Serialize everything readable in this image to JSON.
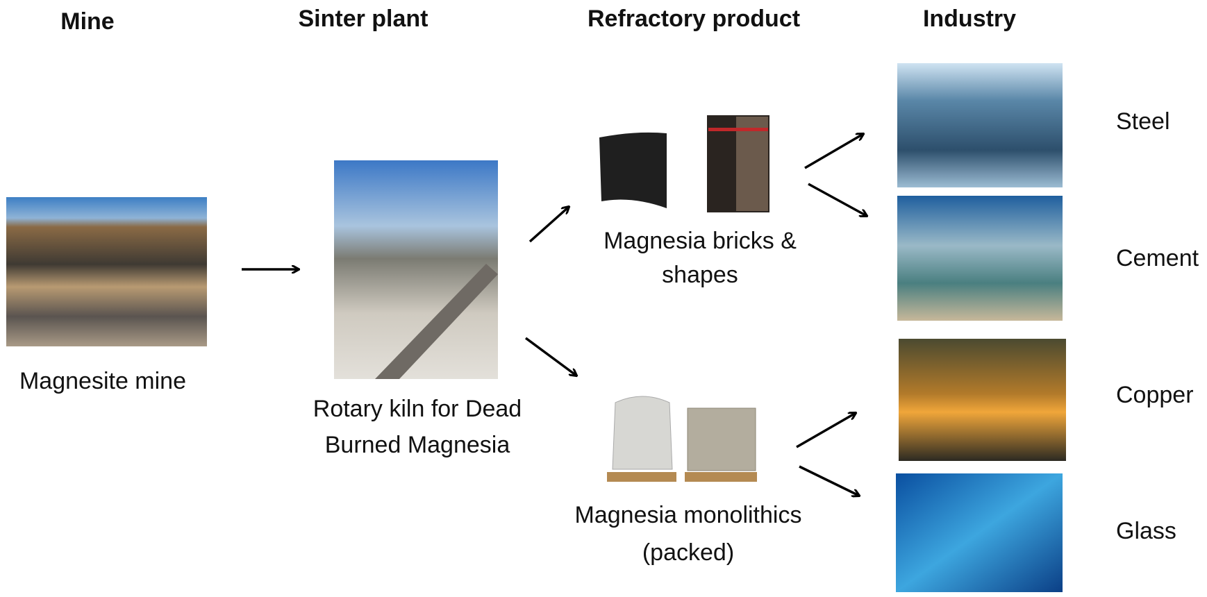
{
  "headers": [
    "Mine",
    "Sinter plant",
    "Refractory product",
    "Industry"
  ],
  "nodes": [
    {
      "lines": [
        "Magnesite mine"
      ]
    },
    {
      "lines": [
        "Rotary kiln for Dead",
        "Burned Magnesia"
      ]
    },
    {
      "lines": [
        "Magnesia bricks &",
        "shapes"
      ]
    },
    {
      "lines": [
        "Magnesia monolithics",
        "(packed)"
      ]
    }
  ],
  "industries": [
    "Steel",
    "Cement",
    "Copper",
    "Glass"
  ]
}
